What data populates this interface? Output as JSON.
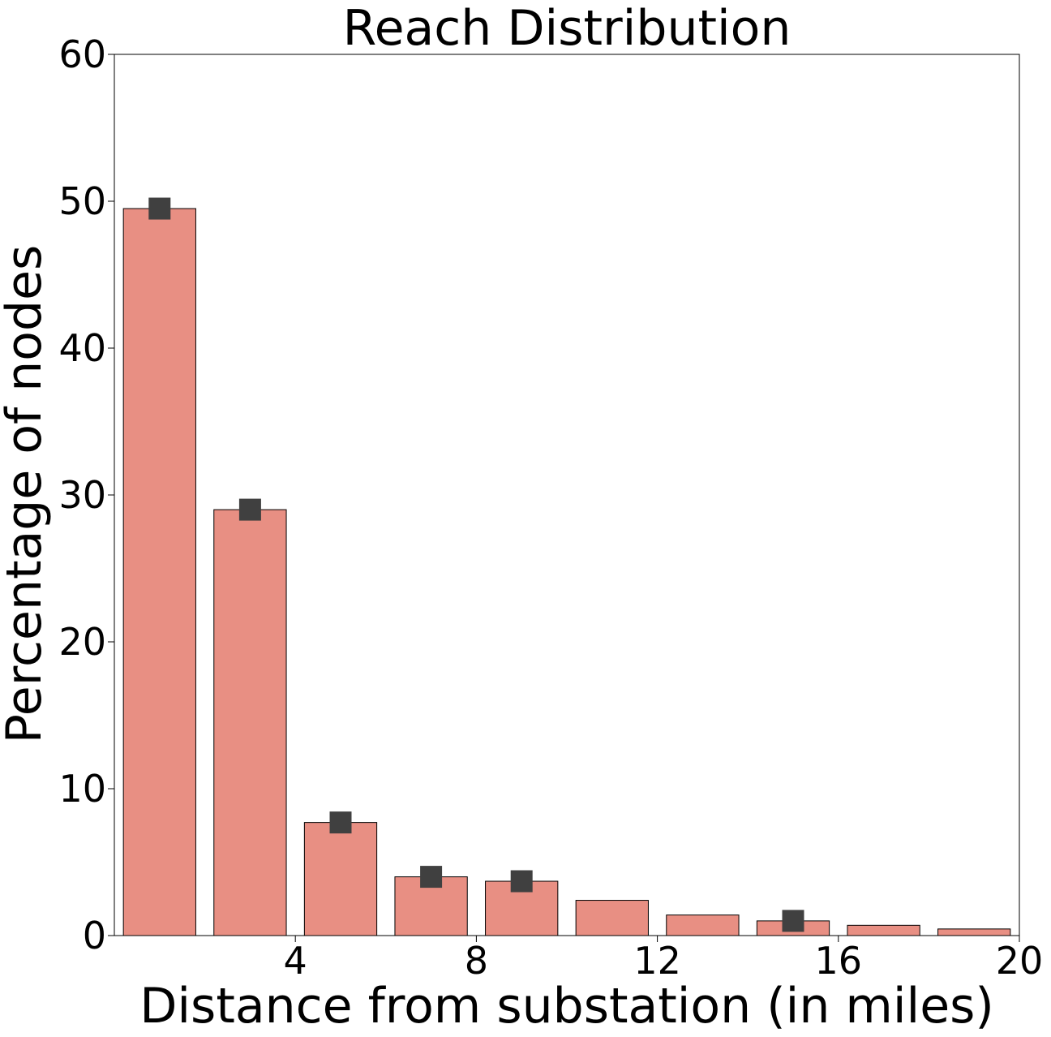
{
  "chart_data": {
    "type": "bar",
    "title": "Reach Distribution",
    "xlabel": "Distance from substation (in miles)",
    "ylabel": "Percentage of nodes",
    "xlim": [
      0,
      20
    ],
    "ylim": [
      0,
      60
    ],
    "xticks": [
      4,
      8,
      12,
      16,
      20
    ],
    "yticks": [
      0,
      10,
      20,
      30,
      40,
      50,
      60
    ],
    "grid": false,
    "bar_color": "#e88f83",
    "marker_color": "#404040",
    "bars": [
      {
        "x": 1,
        "value": 49.5
      },
      {
        "x": 3,
        "value": 29.0
      },
      {
        "x": 5,
        "value": 7.7
      },
      {
        "x": 7,
        "value": 4.0
      },
      {
        "x": 9,
        "value": 3.7
      },
      {
        "x": 11,
        "value": 2.4
      },
      {
        "x": 13,
        "value": 1.4
      },
      {
        "x": 15,
        "value": 1.0
      },
      {
        "x": 17,
        "value": 0.7
      },
      {
        "x": 19,
        "value": 0.45
      }
    ],
    "markers": [
      {
        "x": 1,
        "value": 49.5
      },
      {
        "x": 3,
        "value": 29.0
      },
      {
        "x": 5,
        "value": 7.7
      },
      {
        "x": 7,
        "value": 4.0
      },
      {
        "x": 9,
        "value": 3.7
      },
      {
        "x": 15,
        "value": 1.0
      }
    ]
  }
}
